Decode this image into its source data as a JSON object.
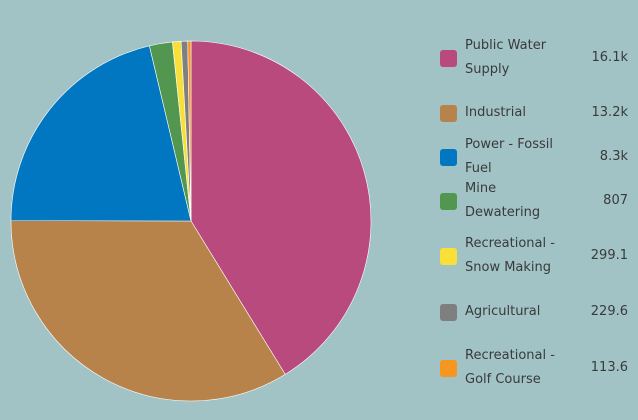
{
  "chart_data": {
    "type": "pie",
    "start_angle_deg": 0,
    "direction": "clockwise",
    "slices": [
      {
        "label": "Public Water Supply",
        "value_label": "16.1k",
        "value": 16100,
        "color": "#b84a7e"
      },
      {
        "label": "Industrial",
        "value_label": "13.2k",
        "value": 13200,
        "color": "#b8834a"
      },
      {
        "label": "Power - Fossil Fuel",
        "value_label": "8.3k",
        "value": 8300,
        "color": "#0077c0"
      },
      {
        "label": "Mine Dewatering",
        "value_label": "807",
        "value": 807,
        "color": "#529650"
      },
      {
        "label": "Recreational - Snow Making",
        "value_label": "299.1",
        "value": 299.1,
        "color": "#f9e038"
      },
      {
        "label": "Agricultural",
        "value_label": "229.6",
        "value": 229.6,
        "color": "#7f7f7f"
      },
      {
        "label": "Recreational - Golf Course",
        "value_label": "113.6",
        "value": 113.6,
        "color": "#f59620"
      }
    ],
    "legend": "right"
  }
}
